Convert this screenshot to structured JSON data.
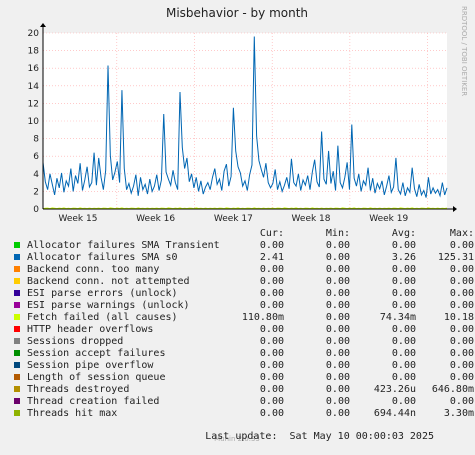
{
  "chart_data": {
    "type": "line",
    "title": "Misbehavior - by month",
    "side_label": "RRDTOOL / TOBI OETIKER",
    "footer": "Munin 2.0.33",
    "xlabel": "",
    "ylabel": "",
    "ylim": [
      0,
      20
    ],
    "yticks": [
      "0",
      "2",
      "4",
      "6",
      "8",
      "10",
      "12",
      "14",
      "16",
      "18",
      "20"
    ],
    "xticks": [
      "Week 15",
      "Week 16",
      "Week 17",
      "Week 18",
      "Week 19"
    ],
    "grid": true,
    "series": [
      {
        "name": "Allocator failures SMA s0",
        "color": "#0066b3",
        "values": [
          5.3,
          3.1,
          2.2,
          4.0,
          2.8,
          1.6,
          3.5,
          2.4,
          4.1,
          1.9,
          3.2,
          2.6,
          4.6,
          2.0,
          3.8,
          2.9,
          5.2,
          2.1,
          3.3,
          4.8,
          2.5,
          3.0,
          6.4,
          2.7,
          5.8,
          3.6,
          2.2,
          4.4,
          16.3,
          6.1,
          3.3,
          4.2,
          5.4,
          3.0,
          13.5,
          4.6,
          2.2,
          2.9,
          1.8,
          2.6,
          3.9,
          1.5,
          3.6,
          2.2,
          2.8,
          1.7,
          3.4,
          2.0,
          2.6,
          3.9,
          2.1,
          3.3,
          10.8,
          4.2,
          3.4,
          2.7,
          4.4,
          3.0,
          2.2,
          13.3,
          7.0,
          4.6,
          5.8,
          3.1,
          4.0,
          2.4,
          3.6,
          2.0,
          3.2,
          1.7,
          2.5,
          3.0,
          2.2,
          3.6,
          4.6,
          2.8,
          3.4,
          2.1,
          4.3,
          5.1,
          2.6,
          3.7,
          11.5,
          6.6,
          4.8,
          4.1,
          2.6,
          3.2,
          2.1,
          3.9,
          5.0,
          19.6,
          8.3,
          5.5,
          4.5,
          3.6,
          5.2,
          3.0,
          2.4,
          2.9,
          4.5,
          2.2,
          3.1,
          2.0,
          2.7,
          3.6,
          2.3,
          5.7,
          3.0,
          2.6,
          4.0,
          2.1,
          3.3,
          2.7,
          3.8,
          2.2,
          4.2,
          5.6,
          3.1,
          2.5,
          8.8,
          3.4,
          2.8,
          6.6,
          2.9,
          4.3,
          2.1,
          7.2,
          3.0,
          2.4,
          3.6,
          5.3,
          2.2,
          9.6,
          3.5,
          2.6,
          4.0,
          2.0,
          3.2,
          2.7,
          4.7,
          2.1,
          3.5,
          1.8,
          2.9,
          2.3,
          3.2,
          1.6,
          2.6,
          3.8,
          1.9,
          2.5,
          5.8,
          2.2,
          1.7,
          3.0,
          1.5,
          2.4,
          1.9,
          4.7,
          2.3,
          1.4,
          2.8,
          1.6,
          2.1,
          1.3,
          3.6,
          1.7,
          2.4,
          1.8,
          2.2,
          1.5,
          3.0,
          1.6,
          2.4
        ]
      },
      {
        "name": "Fetch failed (all causes)",
        "color": "#ccff00",
        "values": [
          0.05,
          0.08,
          0.1,
          0.05,
          0.12,
          0.08,
          0.04,
          0.1,
          0.06,
          0.12,
          0.05,
          0.09,
          0.04,
          0.1,
          0.08,
          0.05,
          0.12,
          0.06,
          0.09,
          0.05,
          0.1,
          0.04,
          0.08,
          0.06,
          0.1,
          0.05,
          0.1,
          0.08,
          0.05,
          0.12,
          0.08,
          0.04,
          0.1,
          0.06,
          0.12,
          0.05,
          0.09,
          0.04,
          0.1,
          0.08,
          0.05,
          0.12,
          0.06,
          0.09,
          0.05,
          0.1,
          0.04,
          0.08,
          0.06,
          0.1,
          0.05,
          0.1,
          0.08,
          0.05,
          0.12,
          0.08,
          0.04,
          0.1,
          0.06,
          0.12,
          0.05,
          0.09,
          0.04,
          0.1,
          0.08,
          0.05,
          0.12,
          0.06,
          0.09,
          0.05,
          0.1,
          0.04,
          0.08,
          0.06,
          0.1,
          0.05,
          0.1,
          0.08,
          0.05,
          0.12,
          0.08,
          0.04,
          0.1,
          0.06,
          0.12,
          0.05,
          0.09,
          0.04,
          0.1,
          0.08,
          0.05,
          0.12,
          0.06,
          0.09,
          0.05,
          0.1,
          0.04,
          0.08,
          0.06,
          0.1,
          0.05,
          0.1,
          0.08,
          0.05,
          0.12,
          0.08,
          0.04,
          0.1,
          0.06,
          0.12,
          0.05,
          0.09,
          0.04,
          0.1,
          0.08,
          0.05,
          0.12,
          0.06,
          0.09,
          0.05,
          0.1,
          0.04,
          0.08,
          0.06,
          0.1,
          0.05,
          0.1,
          0.08,
          0.05,
          0.12,
          0.08,
          0.04,
          0.1,
          0.06,
          0.12,
          0.05,
          0.09,
          0.04,
          0.1,
          0.08,
          0.05,
          0.12,
          0.06,
          0.09,
          0.05,
          0.1,
          0.04,
          0.08,
          0.06,
          0.1,
          0.05,
          0.1,
          0.08,
          0.05,
          0.12,
          0.08,
          0.04,
          0.1,
          0.06,
          0.12,
          0.05,
          0.09,
          0.04,
          0.1,
          0.08,
          0.05,
          0.12,
          0.06,
          0.09,
          0.05,
          0.1,
          0.04,
          0.08,
          0.06,
          0.1
        ]
      }
    ]
  },
  "legend": {
    "headers": {
      "cur": "Cur:",
      "min": "Min:",
      "avg": "Avg:",
      "max": "Max:"
    },
    "rows": [
      {
        "name": "Allocator failures SMA Transient",
        "color": "#00cc00",
        "cur": "0.00",
        "min": "0.00",
        "avg": "0.00",
        "max": "0.00"
      },
      {
        "name": "Allocator failures SMA s0",
        "color": "#0066b3",
        "cur": "2.41",
        "min": "0.00",
        "avg": "3.26",
        "max": "125.31"
      },
      {
        "name": "Backend conn. too many",
        "color": "#ff8000",
        "cur": "0.00",
        "min": "0.00",
        "avg": "0.00",
        "max": "0.00"
      },
      {
        "name": "Backend conn. not attempted",
        "color": "#ffcc00",
        "cur": "0.00",
        "min": "0.00",
        "avg": "0.00",
        "max": "0.00"
      },
      {
        "name": "ESI parse errors (unlock)",
        "color": "#330099",
        "cur": "0.00",
        "min": "0.00",
        "avg": "0.00",
        "max": "0.00"
      },
      {
        "name": "ESI parse warnings (unlock)",
        "color": "#990099",
        "cur": "0.00",
        "min": "0.00",
        "avg": "0.00",
        "max": "0.00"
      },
      {
        "name": "Fetch failed (all causes)",
        "color": "#ccff00",
        "cur": "110.80m",
        "min": "0.00",
        "avg": "74.34m",
        "max": "10.18"
      },
      {
        "name": "HTTP header overflows",
        "color": "#ff0000",
        "cur": "0.00",
        "min": "0.00",
        "avg": "0.00",
        "max": "0.00"
      },
      {
        "name": "Sessions dropped",
        "color": "#808080",
        "cur": "0.00",
        "min": "0.00",
        "avg": "0.00",
        "max": "0.00"
      },
      {
        "name": "Session accept failures",
        "color": "#008f00",
        "cur": "0.00",
        "min": "0.00",
        "avg": "0.00",
        "max": "0.00"
      },
      {
        "name": "Session pipe overflow",
        "color": "#00487d",
        "cur": "0.00",
        "min": "0.00",
        "avg": "0.00",
        "max": "0.00"
      },
      {
        "name": "Length of session queue",
        "color": "#b35a00",
        "cur": "0.00",
        "min": "0.00",
        "avg": "0.00",
        "max": "0.00"
      },
      {
        "name": "Threads destroyed",
        "color": "#b38f00",
        "cur": "0.00",
        "min": "0.00",
        "avg": "423.26u",
        "max": "646.80m"
      },
      {
        "name": "Thread creation failed",
        "color": "#6b006b",
        "cur": "0.00",
        "min": "0.00",
        "avg": "0.00",
        "max": "0.00"
      },
      {
        "name": "Threads hit max",
        "color": "#8fb300",
        "cur": "0.00",
        "min": "0.00",
        "avg": "694.44n",
        "max": "3.30m"
      }
    ],
    "last_update": "Last update:  Sat May 10 00:00:03 2025"
  }
}
